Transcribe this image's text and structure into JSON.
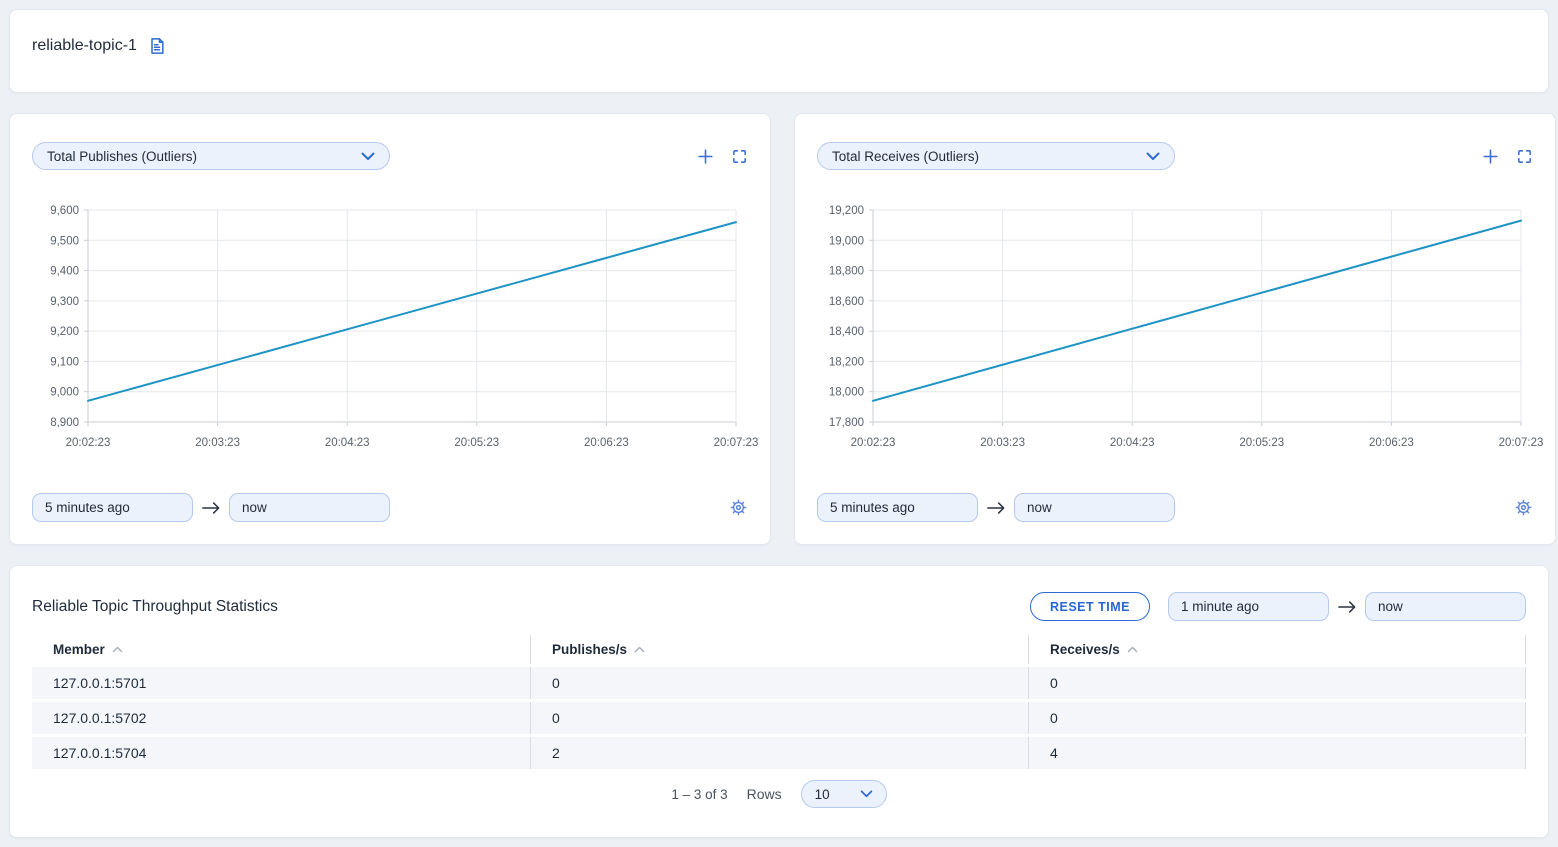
{
  "header": {
    "title": "reliable-topic-1"
  },
  "colors": {
    "accent_blue": "#2f6bd0",
    "chart_line": "#1e93c6",
    "input_fill": "#ecf2fc",
    "input_border": "#b5c9ec",
    "row_fill": "#f4f6f9",
    "page_background": "#edf0f4"
  },
  "charts": [
    {
      "metric_selector": "Total Publishes (Outliers)",
      "from": "5 minutes ago",
      "to": "now"
    },
    {
      "metric_selector": "Total Receives (Outliers)",
      "from": "5 minutes ago",
      "to": "now"
    }
  ],
  "chart_data": [
    {
      "type": "line",
      "title": "Total Publishes (Outliers)",
      "x": [
        "20:02:23",
        "20:03:23",
        "20:04:23",
        "20:05:23",
        "20:06:23",
        "20:07:23"
      ],
      "values": [
        8970,
        9088,
        9206,
        9324,
        9442,
        9560
      ],
      "ylim": [
        8900,
        9600
      ],
      "ytick_step": 100,
      "grid": true,
      "legend": "none",
      "line_color": "#1e93c6"
    },
    {
      "type": "line",
      "title": "Total Receives (Outliers)",
      "x": [
        "20:02:23",
        "20:03:23",
        "20:04:23",
        "20:05:23",
        "20:06:23",
        "20:07:23"
      ],
      "values": [
        17940,
        18178,
        18416,
        18654,
        18892,
        19130
      ],
      "ylim": [
        17800,
        19200
      ],
      "ytick_step": 200,
      "grid": true,
      "legend": "none",
      "line_color": "#1e93c6"
    }
  ],
  "stats_panel": {
    "title": "Reliable Topic Throughput Statistics",
    "reset_button": "RESET TIME",
    "from": "1 minute ago",
    "to": "now",
    "table": {
      "columns": [
        "Member",
        "Publishes/s",
        "Receives/s"
      ],
      "rows": [
        {
          "member": "127.0.0.1:5701",
          "publishes": "0",
          "receives": "0"
        },
        {
          "member": "127.0.0.1:5702",
          "publishes": "0",
          "receives": "0"
        },
        {
          "member": "127.0.0.1:5704",
          "publishes": "2",
          "receives": "4"
        }
      ]
    },
    "pagination": {
      "range": "1 – 3 of 3",
      "rows_label": "Rows",
      "page_size": "10"
    }
  }
}
